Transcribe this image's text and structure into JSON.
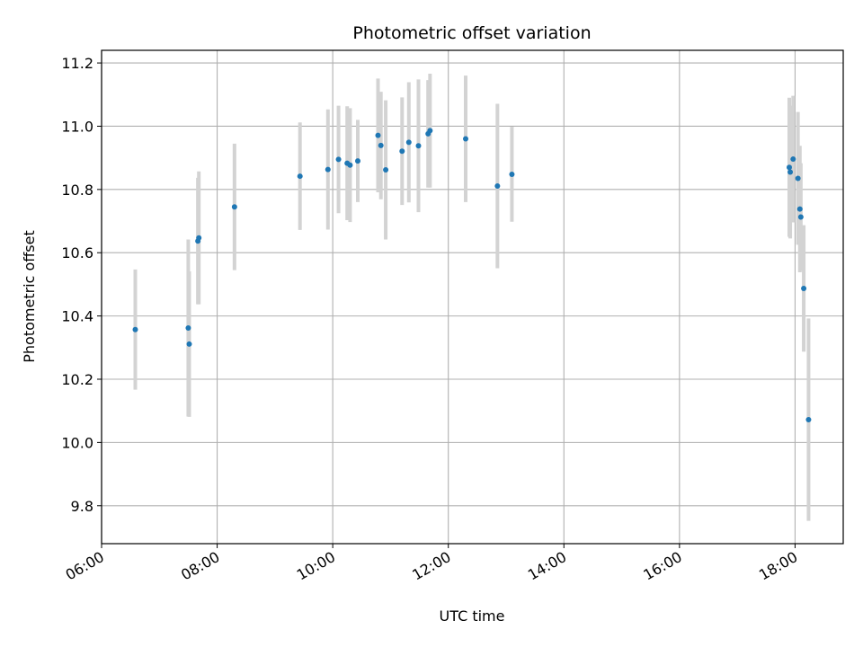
{
  "chart_data": {
    "type": "scatter",
    "title": "Photometric offset variation",
    "xlabel": "UTC time",
    "ylabel": "Photometric offset",
    "x_axis_type": "time",
    "xlim": [
      "06:00",
      "18:50"
    ],
    "ylim": [
      9.68,
      11.24
    ],
    "x_ticks": [
      "06:00",
      "08:00",
      "10:00",
      "12:00",
      "14:00",
      "16:00",
      "18:00"
    ],
    "y_ticks": [
      9.8,
      10.0,
      10.2,
      10.4,
      10.6,
      10.8,
      11.0,
      11.2
    ],
    "grid": true,
    "legend": false,
    "point_color": "#1f77b4",
    "errorbar_color": "#d3d3d3",
    "points": [
      {
        "time": "06:35",
        "y": 10.357,
        "err": 0.19
      },
      {
        "time": "07:30",
        "y": 10.362,
        "err": 0.28
      },
      {
        "time": "07:31",
        "y": 10.311,
        "err": 0.23
      },
      {
        "time": "07:40",
        "y": 10.637,
        "err": 0.2
      },
      {
        "time": "07:41",
        "y": 10.647,
        "err": 0.21
      },
      {
        "time": "08:18",
        "y": 10.745,
        "err": 0.2
      },
      {
        "time": "09:26",
        "y": 10.842,
        "err": 0.17
      },
      {
        "time": "09:55",
        "y": 10.863,
        "err": 0.19
      },
      {
        "time": "10:06",
        "y": 10.895,
        "err": 0.17
      },
      {
        "time": "10:15",
        "y": 10.883,
        "err": 0.18
      },
      {
        "time": "10:18",
        "y": 10.877,
        "err": 0.18
      },
      {
        "time": "10:26",
        "y": 10.89,
        "err": 0.13
      },
      {
        "time": "10:47",
        "y": 10.971,
        "err": 0.18
      },
      {
        "time": "10:50",
        "y": 10.939,
        "err": 0.17
      },
      {
        "time": "10:55",
        "y": 10.862,
        "err": 0.22
      },
      {
        "time": "11:12",
        "y": 10.921,
        "err": 0.17
      },
      {
        "time": "11:19",
        "y": 10.949,
        "err": 0.19
      },
      {
        "time": "11:29",
        "y": 10.938,
        "err": 0.21
      },
      {
        "time": "11:39",
        "y": 10.976,
        "err": 0.17
      },
      {
        "time": "11:41",
        "y": 10.986,
        "err": 0.18
      },
      {
        "time": "12:18",
        "y": 10.96,
        "err": 0.2
      },
      {
        "time": "12:51",
        "y": 10.811,
        "err": 0.26
      },
      {
        "time": "13:06",
        "y": 10.848,
        "err": 0.15
      },
      {
        "time": "17:54",
        "y": 10.87,
        "err": 0.22
      },
      {
        "time": "17:55",
        "y": 10.855,
        "err": 0.21
      },
      {
        "time": "17:58",
        "y": 10.896,
        "err": 0.2
      },
      {
        "time": "18:03",
        "y": 10.835,
        "err": 0.21
      },
      {
        "time": "18:05",
        "y": 10.738,
        "err": 0.2
      },
      {
        "time": "18:06",
        "y": 10.713,
        "err": 0.17
      },
      {
        "time": "18:09",
        "y": 10.487,
        "err": 0.2
      },
      {
        "time": "18:14",
        "y": 10.072,
        "err": 0.32
      }
    ]
  }
}
